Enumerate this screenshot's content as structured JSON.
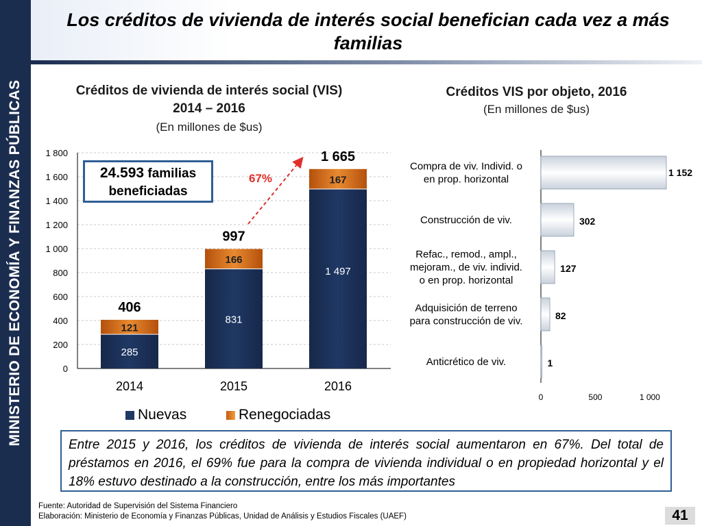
{
  "side_label": "MINISTERIO DE ECONOMÍA Y FINANZAS PÚBLICAS",
  "title_line1": "Los créditos de vivienda de interés social benefician cada vez a más",
  "title_line2": "familias",
  "colors": {
    "nuevas": "#1f3864",
    "renegociadas": "#c55a11",
    "hbar": "#e3e8ef",
    "accent": "#2e5e95",
    "arrow": "#e0302a"
  },
  "left_chart": {
    "title_line1": "Créditos de vivienda de interés social (VIS)",
    "title_line2": "2014 – 2016",
    "subtitle": "(En millones de $us)",
    "callout_number": "24.593",
    "callout_word1": "familias",
    "callout_word2": "beneficiadas",
    "growth_label": "67%",
    "legend": [
      "Nuevas",
      "Renegociadas"
    ]
  },
  "right_chart": {
    "title": "Créditos VIS por objeto, 2016",
    "subtitle": "(En millones de $us)"
  },
  "chart_data": [
    {
      "type": "bar",
      "stacked": true,
      "title": "Créditos de vivienda de interés social (VIS) 2014 – 2016",
      "categories": [
        "2014",
        "2015",
        "2016"
      ],
      "series": [
        {
          "name": "Nuevas",
          "values": [
            285,
            831,
            1497
          ],
          "labels": [
            "285",
            "831",
            "1 497"
          ]
        },
        {
          "name": "Renegociadas",
          "values": [
            121,
            166,
            167
          ],
          "labels": [
            "121",
            "166",
            "167"
          ]
        }
      ],
      "totals": [
        406,
        997,
        1665
      ],
      "total_labels": [
        "406",
        "997",
        "1 665"
      ],
      "ylim": [
        0,
        1800
      ],
      "yticks": [
        0,
        200,
        400,
        600,
        800,
        1000,
        1200,
        1400,
        1600,
        1800
      ],
      "ytick_labels": [
        "0",
        "200",
        "400",
        "600",
        "800",
        "1 000",
        "1 200",
        "1 400",
        "1 600",
        "1 800"
      ],
      "grid": true,
      "legend": "bottom"
    },
    {
      "type": "bar",
      "orientation": "horizontal",
      "title": "Créditos VIS por objeto, 2016",
      "categories": [
        [
          "Compra de viv. Individ. o",
          "en prop. horizontal"
        ],
        [
          "Construcción de viv."
        ],
        [
          "Refac., remod., ampl.,",
          "mejoram., de viv. individ.",
          "o en prop. horizontal"
        ],
        [
          "Adquisición de terreno",
          "para construcción de viv."
        ],
        [
          "Anticrético de viv."
        ]
      ],
      "values": [
        1152,
        302,
        127,
        82,
        1
      ],
      "value_labels": [
        "1 152",
        "302",
        "127",
        "82",
        "1"
      ],
      "xlim": [
        0,
        1152
      ],
      "xticks": [
        0,
        500,
        1000
      ],
      "xtick_labels": [
        "0",
        "500",
        "1 000"
      ]
    }
  ],
  "summary": "Entre 2015 y 2016, los créditos de vivienda de interés social aumentaron en 67%. Del total de préstamos en 2016, el 69% fue para la compra de vivienda individual o en propiedad horizontal y el 18% estuvo destinado a la construcción, entre los más importantes",
  "source_line1": "Fuente: Autoridad de Supervisión del Sistema Financiero",
  "source_line2": "Elaboración: Ministerio de Economía y Finanzas Públicas, Unidad de Análisis y Estudios Fiscales (UAEF)",
  "page_number": "41"
}
